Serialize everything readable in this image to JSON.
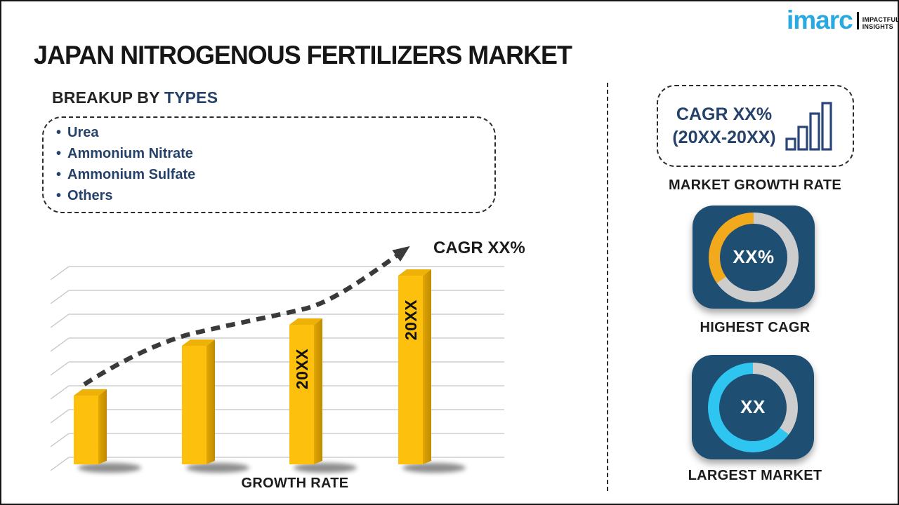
{
  "logo": {
    "brand": "imarc",
    "tagline_line1": "IMPACTFUL",
    "tagline_line2": "INSIGHTS"
  },
  "title": "JAPAN NITROGENOUS FERTILIZERS MARKET",
  "breakup": {
    "heading_prefix": "BREAKUP BY ",
    "heading_highlight": "TYPES",
    "items": [
      "Urea",
      "Ammonium Nitrate",
      "Ammonium Sulfate",
      "Others"
    ]
  },
  "chart_data": {
    "type": "bar",
    "title": "",
    "xlabel": "GROWTH RATE",
    "ylabel": "",
    "categories": [
      "",
      "",
      "20XX",
      "20XX"
    ],
    "values_percent_of_max": [
      36,
      62,
      73,
      99
    ],
    "trend_label": "CAGR XX%",
    "bar_color": "#FDC10D",
    "gridlines": 9,
    "legend": "none"
  },
  "side_panel": {
    "growth_box": {
      "line1": "CAGR XX%",
      "line2": "(20XX-20XX)",
      "icon": "bar-chart-icon"
    },
    "captions": {
      "growth": "MARKET GROWTH RATE",
      "cagr": "HIGHEST CAGR",
      "market": "LARGEST MARKET"
    },
    "highest_cagr_donut": {
      "value_label": "XX%",
      "accent_color": "#F2A91B",
      "accent_start_deg": 235,
      "accent_end_deg": 360
    },
    "largest_market_donut": {
      "value_label": "XX",
      "accent_color": "#2EC6F0",
      "accent_start_deg": 127,
      "accent_end_deg": 360
    }
  },
  "colors": {
    "logo_blue": "#29A9E1",
    "navy_text": "#25426B",
    "tile_blue": "#1F4E73",
    "ring_gray": "#CDCDCD",
    "trend_dark": "#3A3A3A"
  }
}
